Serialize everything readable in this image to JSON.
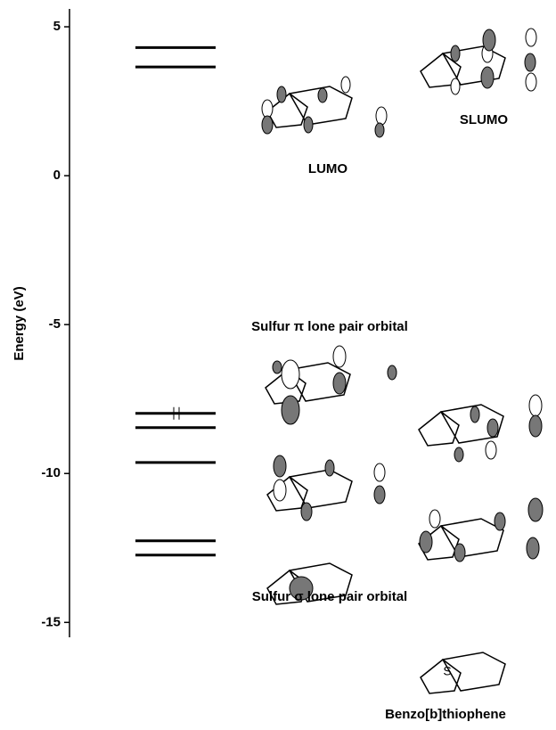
{
  "chart_data": {
    "type": "energy_levels",
    "y_label": "Energy (eV)",
    "ylim": [
      -15.5,
      5.6
    ],
    "yticks": [
      5,
      0,
      -5,
      -10,
      -15
    ],
    "values": [
      4.3,
      3.65,
      -7.98,
      -8.46,
      -9.63,
      -12.26,
      -12.74
    ],
    "color": "#000000",
    "annotations": {
      "lumo": "LUMO",
      "slumo": "SLUMO",
      "pi_lone_pair": "Sulfur π lone pair orbital",
      "sigma_lone_pair": "Sulfur σ lone pair orbital",
      "molecule": "Benzo[b]thiophene",
      "sulfur_atom": "S"
    }
  }
}
